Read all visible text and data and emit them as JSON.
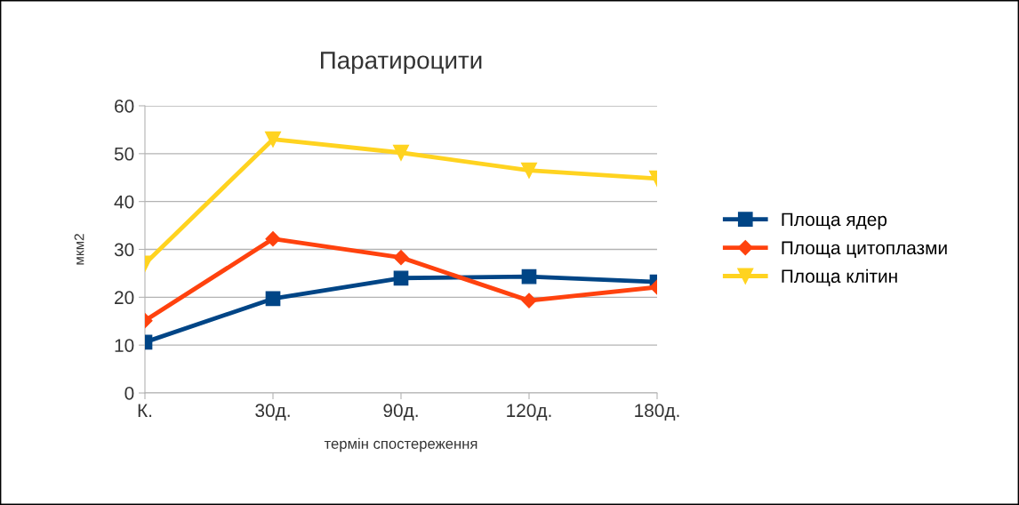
{
  "chart_data": {
    "type": "line",
    "title": "Паратироцити",
    "xlabel": "термін спостереження",
    "ylabel": "мкм2",
    "categories": [
      "К.",
      "30д.",
      "90д.",
      "120д.",
      "180д."
    ],
    "series": [
      {
        "name": "Площа ядер",
        "color": "#004586",
        "marker": "square",
        "values": [
          10.6,
          19.7,
          24.0,
          24.3,
          23.2
        ]
      },
      {
        "name": "Площа цитоплазми",
        "color": "#ff420e",
        "marker": "diamond",
        "values": [
          15.1,
          32.2,
          28.3,
          19.3,
          22.1
        ]
      },
      {
        "name": "Площа клітин",
        "color": "#ffd320",
        "marker": "triangle_down",
        "values": [
          27.0,
          53.0,
          50.2,
          46.5,
          44.8
        ]
      }
    ],
    "ylim": [
      0,
      60
    ],
    "yticks": [
      0,
      10,
      20,
      30,
      40,
      50,
      60
    ],
    "grid": "y",
    "legend": "right",
    "line_style": "solid"
  }
}
